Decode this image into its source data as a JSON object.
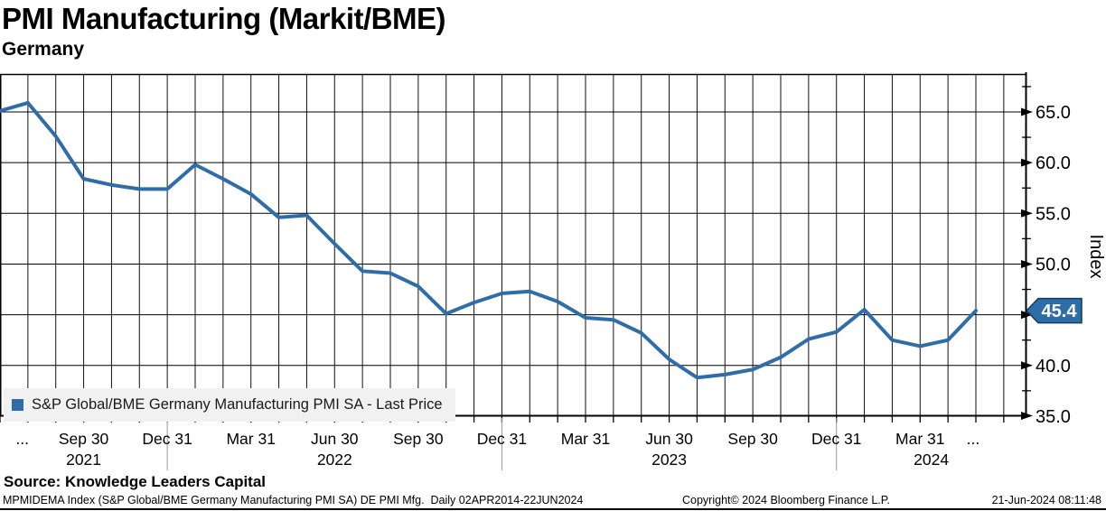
{
  "header": {
    "title": "PMI Manufacturing (Markit/BME)",
    "subtitle": "Germany"
  },
  "legend": {
    "label": "S&P Global/BME Germany Manufacturing PMI SA - Last Price"
  },
  "y_axis": {
    "title": "Index",
    "ticks": [
      {
        "label": "65.0",
        "value": 65
      },
      {
        "label": "60.0",
        "value": 60
      },
      {
        "label": "55.0",
        "value": 55
      },
      {
        "label": "50.0",
        "value": 50
      },
      {
        "label": "40.0",
        "value": 40
      },
      {
        "label": "35.0",
        "value": 35
      }
    ],
    "major_gridline_values": [
      35,
      40,
      45,
      50,
      55,
      60,
      65
    ],
    "minor_tick_values": [
      37.5,
      42.5,
      47.5,
      52.5,
      57.5,
      62.5,
      67.5
    ],
    "last_price_badge": {
      "label": "45.4",
      "value": 45.4
    }
  },
  "x_axis": {
    "quarter_ticks": [
      {
        "label": "...",
        "month_index": 0.8
      },
      {
        "label": "Sep 30",
        "month_index": 3
      },
      {
        "label": "Dec 31",
        "month_index": 6
      },
      {
        "label": "Mar 31",
        "month_index": 9
      },
      {
        "label": "Jun 30",
        "month_index": 12
      },
      {
        "label": "Sep 30",
        "month_index": 15
      },
      {
        "label": "Dec 31",
        "month_index": 18
      },
      {
        "label": "Mar 31",
        "month_index": 21
      },
      {
        "label": "Jun 30",
        "month_index": 24
      },
      {
        "label": "Sep 30",
        "month_index": 27
      },
      {
        "label": "Dec 31",
        "month_index": 30
      },
      {
        "label": "Mar 31",
        "month_index": 33
      },
      {
        "label": "...",
        "month_index": 34.9
      }
    ],
    "year_labels": [
      {
        "label": "2021",
        "month_index": 3
      },
      {
        "label": "2022",
        "month_index": 12
      },
      {
        "label": "2023",
        "month_index": 24
      },
      {
        "label": "2024",
        "month_index": 33.4
      }
    ],
    "year_separator_month_indices": [
      6,
      18,
      30
    ]
  },
  "chart_data": {
    "type": "line",
    "title": "PMI Manufacturing (Markit/BME) - Germany",
    "series": [
      {
        "name": "S&P Global/BME Germany Manufacturing PMI SA - Last Price",
        "values": [
          65.1,
          65.9,
          62.6,
          58.4,
          57.8,
          57.4,
          57.4,
          59.8,
          58.4,
          56.9,
          54.6,
          54.8,
          52.0,
          49.3,
          49.1,
          47.8,
          45.1,
          46.2,
          47.1,
          47.3,
          46.3,
          44.7,
          44.5,
          43.2,
          40.6,
          38.8,
          39.1,
          39.6,
          40.8,
          42.6,
          43.3,
          45.5,
          42.5,
          41.9,
          42.5,
          45.4
        ]
      }
    ],
    "x": [
      "Jun 2021",
      "Jul 2021",
      "Aug 2021",
      "Sep 2021",
      "Oct 2021",
      "Nov 2021",
      "Dec 2021",
      "Jan 2022",
      "Feb 2022",
      "Mar 2022",
      "Apr 2022",
      "May 2022",
      "Jun 2022",
      "Jul 2022",
      "Aug 2022",
      "Sep 2022",
      "Oct 2022",
      "Nov 2022",
      "Dec 2022",
      "Jan 2023",
      "Feb 2023",
      "Mar 2023",
      "Apr 2023",
      "May 2023",
      "Jun 2023",
      "Jul 2023",
      "Aug 2023",
      "Sep 2023",
      "Oct 2023",
      "Nov 2023",
      "Dec 2023",
      "Jan 2024",
      "Feb 2024",
      "Mar 2024",
      "Apr 2024",
      "May 2024"
    ],
    "last_price": 45.4,
    "ylabel": "Index",
    "ylim": [
      35,
      68.6
    ],
    "grid": true,
    "legend_position": "bottom-left"
  },
  "footer": {
    "source": "Source: Knowledge Leaders Capital",
    "ticker_line": "MPMIDEMA Index (S&P Global/BME Germany Manufacturing PMI SA) DE PMI Mfg.  Daily 02APR2014-22JUN2024",
    "copyright": "Copyright© 2024 Bloomberg Finance L.P.",
    "timestamp": "21-Jun-2024 08:11:48"
  },
  "colors": {
    "line": "#2e6da9",
    "badge_bg": "#2d6da8",
    "badge_border": "#16395f",
    "badge_text": "#ffffff",
    "grid": "#111111",
    "axis": "#000000",
    "year_separator": "#999999",
    "legend_bg": "#f1f1f1"
  }
}
